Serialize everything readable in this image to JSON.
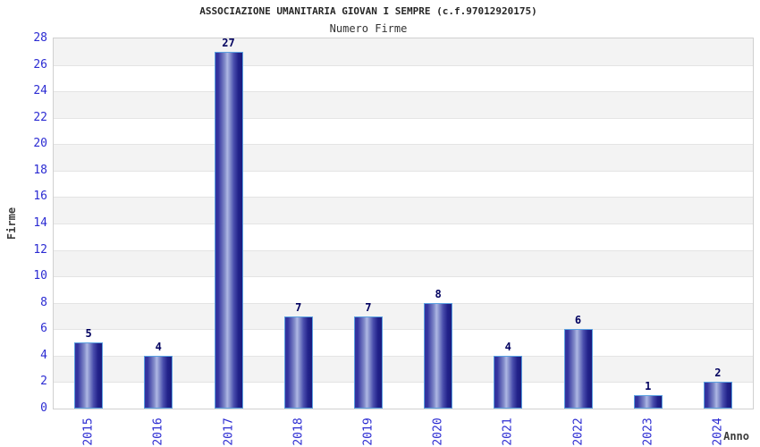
{
  "chart_data": {
    "type": "bar",
    "title": "ASSOCIAZIONE UMANITARIA GIOVAN I SEMPRE (c.f.97012920175)",
    "subtitle": "Numero Firme",
    "xlabel": "Anno",
    "ylabel": "Firme",
    "categories": [
      "2015",
      "2016",
      "2017",
      "2018",
      "2019",
      "2020",
      "2021",
      "2022",
      "2023",
      "2024"
    ],
    "values": [
      5,
      4,
      27,
      7,
      7,
      8,
      4,
      6,
      1,
      2
    ],
    "ylim": [
      0,
      28
    ],
    "ytick_step": 2,
    "legend": "none",
    "grid": "horizontal-bands",
    "colors": {
      "tick_label": "#2b2bd2",
      "value_label": "#00005f",
      "title_color": "#262626",
      "subtitle_color": "#333333",
      "axis_label_color": "#3d3d3d",
      "band_gray": "#f3f3f3",
      "band_white": "#ffffff",
      "grid_line": "#e4e4e4",
      "plot_border": "#d0d0d0",
      "bar_border": "#5aa0e0",
      "bar_dark": "#1b1b7e",
      "bar_mid": "#33339e",
      "bar_light": "#aeb7e4"
    }
  }
}
